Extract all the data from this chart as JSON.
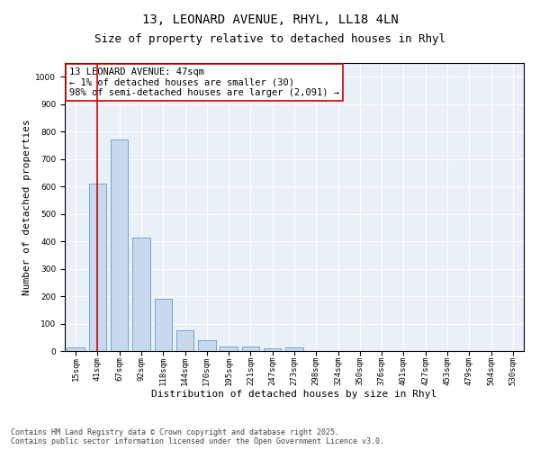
{
  "title_line1": "13, LEONARD AVENUE, RHYL, LL18 4LN",
  "title_line2": "Size of property relative to detached houses in Rhyl",
  "xlabel": "Distribution of detached houses by size in Rhyl",
  "ylabel": "Number of detached properties",
  "categories": [
    "15sqm",
    "41sqm",
    "67sqm",
    "92sqm",
    "118sqm",
    "144sqm",
    "170sqm",
    "195sqm",
    "221sqm",
    "247sqm",
    "273sqm",
    "298sqm",
    "324sqm",
    "350sqm",
    "376sqm",
    "401sqm",
    "427sqm",
    "453sqm",
    "479sqm",
    "504sqm",
    "530sqm"
  ],
  "values": [
    12,
    610,
    770,
    415,
    190,
    75,
    38,
    18,
    15,
    10,
    13,
    0,
    0,
    0,
    0,
    0,
    0,
    0,
    0,
    0,
    0
  ],
  "bar_color": "#c9d9ed",
  "bar_edge_color": "#5b9bd5",
  "vline_x": 1,
  "vline_color": "#cc0000",
  "annotation_text": "13 LEONARD AVENUE: 47sqm\n← 1% of detached houses are smaller (30)\n98% of semi-detached houses are larger (2,091) →",
  "annotation_box_color": "#ffffff",
  "annotation_box_edge": "#cc0000",
  "ylim": [
    0,
    1050
  ],
  "yticks": [
    0,
    100,
    200,
    300,
    400,
    500,
    600,
    700,
    800,
    900,
    1000
  ],
  "background_color": "#ffffff",
  "plot_bg_color": "#eaf0f8",
  "grid_color": "#ffffff",
  "footnote": "Contains HM Land Registry data © Crown copyright and database right 2025.\nContains public sector information licensed under the Open Government Licence v3.0.",
  "title_fontsize": 10,
  "subtitle_fontsize": 9,
  "label_fontsize": 8,
  "tick_fontsize": 6.5,
  "footnote_fontsize": 6,
  "annot_fontsize": 7.5
}
